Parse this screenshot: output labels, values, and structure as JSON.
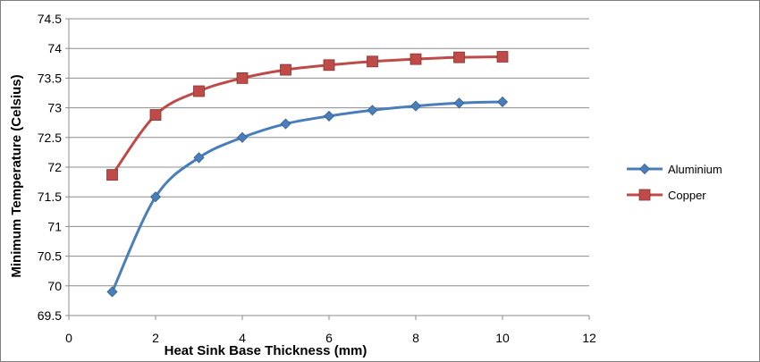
{
  "chart_data": {
    "type": "line",
    "title": "",
    "xlabel": "Heat Sink Base Thickness (mm)",
    "ylabel": "Minimum Temperature (Celsius)",
    "xlim": [
      0,
      12
    ],
    "ylim": [
      69.5,
      74.5
    ],
    "xticks": [
      0,
      2,
      4,
      6,
      8,
      10,
      12
    ],
    "yticks": [
      69.5,
      70,
      70.5,
      71,
      71.5,
      72,
      72.5,
      73,
      73.5,
      74,
      74.5
    ],
    "grid": "horizontal",
    "legend_position": "right",
    "x": [
      1,
      2,
      3,
      4,
      5,
      6,
      7,
      8,
      9,
      10
    ],
    "series": [
      {
        "name": "Aluminium",
        "color": "#4a7ebb",
        "marker": "diamond",
        "values": [
          69.9,
          71.5,
          72.16,
          72.5,
          72.73,
          72.86,
          72.96,
          73.03,
          73.08,
          73.1
        ]
      },
      {
        "name": "Copper",
        "color": "#be4b48",
        "marker": "square",
        "values": [
          71.87,
          72.88,
          73.28,
          73.5,
          73.64,
          73.72,
          73.78,
          73.82,
          73.85,
          73.86
        ]
      }
    ]
  }
}
